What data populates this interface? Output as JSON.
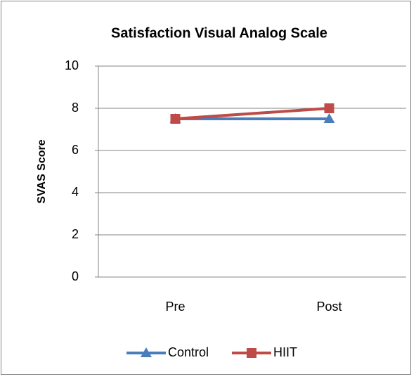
{
  "chart_data": {
    "type": "line",
    "title": "Satisfaction Visual Analog Scale",
    "y_label": "SVAS Score",
    "categories": [
      "Pre",
      "Post"
    ],
    "series": [
      {
        "name": "Control",
        "color": "#4a7ebb",
        "marker": "triangle",
        "values": [
          7.5,
          7.5
        ]
      },
      {
        "name": "HIIT",
        "color": "#be4b48",
        "marker": "square",
        "values": [
          7.5,
          8
        ]
      }
    ],
    "ylim": [
      0,
      10
    ],
    "yticks": [
      0,
      2,
      4,
      6,
      8,
      10
    ],
    "grid": true,
    "legend": "bottom"
  }
}
